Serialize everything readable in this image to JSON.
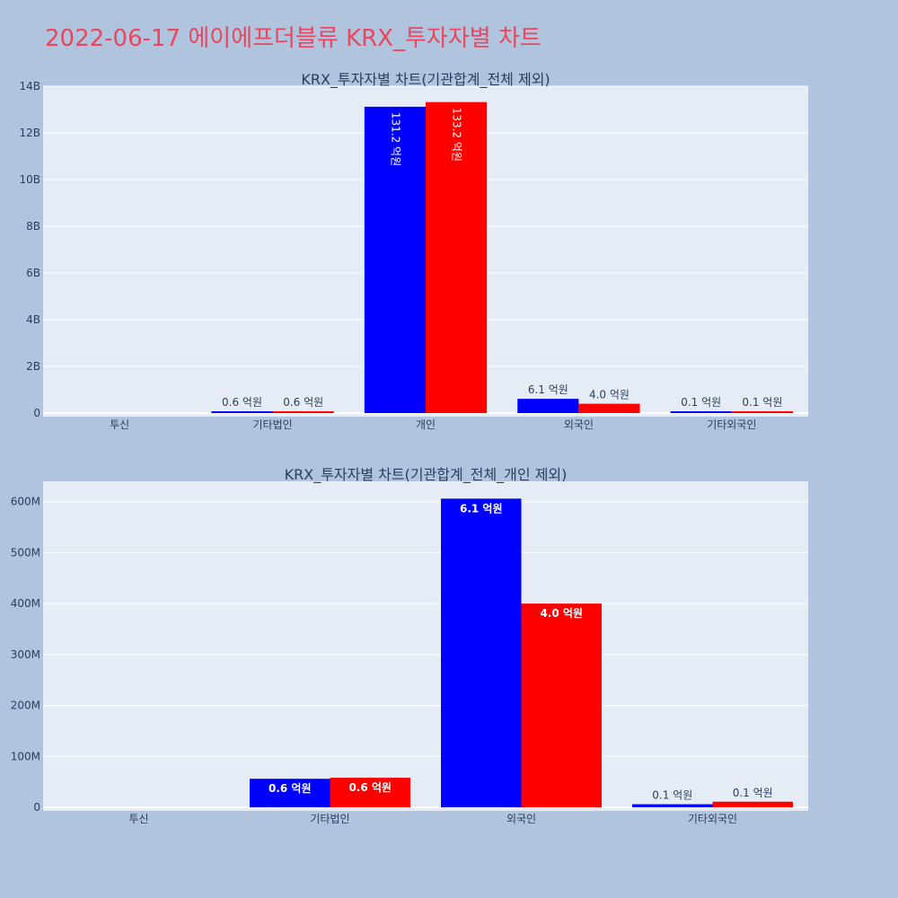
{
  "page": {
    "title": "2022-06-17 에이에프더블류 KRX_투자자별 차트"
  },
  "colors": {
    "background": "#b0c4de",
    "plot_bg": "#e5ecf6",
    "series_a": "#0000ff",
    "series_b": "#ff0000",
    "title": "#e8475f",
    "text": "#2a3f5f"
  },
  "chart_data": [
    {
      "type": "bar",
      "title": "KRX_투자자별 차트(기관합계_전체 제외)",
      "categories": [
        "투신",
        "기타법인",
        "개인",
        "외국인",
        "기타외국인"
      ],
      "series": [
        {
          "color": "#0000ff",
          "values": [
            0,
            56000000,
            13120000000,
            610000000,
            10000000
          ],
          "labels": [
            "",
            "0.6 억원",
            "131.2 억원",
            "6.1 억원",
            "0.1 억원"
          ]
        },
        {
          "color": "#ff0000",
          "values": [
            0,
            58000000,
            13320000000,
            400000000,
            10000000
          ],
          "labels": [
            "",
            "0.6 억원",
            "133.2 억원",
            "4.0 억원",
            "0.1 억원"
          ]
        }
      ],
      "ylim": [
        0,
        14000000000
      ],
      "yticks": [
        0,
        2000000000,
        4000000000,
        6000000000,
        8000000000,
        10000000000,
        12000000000,
        14000000000
      ],
      "ytick_labels": [
        "0",
        "2B",
        "4B",
        "6B",
        "8B",
        "10B",
        "12B",
        "14B"
      ],
      "grid": true
    },
    {
      "type": "bar",
      "title": "KRX_투자자별 차트(기관합계_전체_개인 제외)",
      "categories": [
        "투신",
        "기타법인",
        "외국인",
        "기타외국인"
      ],
      "series": [
        {
          "color": "#0000ff",
          "values": [
            0,
            56000000,
            606000000,
            6000000
          ],
          "labels": [
            "",
            "0.6 억원",
            "6.1 억원",
            "0.1 억원"
          ]
        },
        {
          "color": "#ff0000",
          "values": [
            0,
            58000000,
            400000000,
            11000000
          ],
          "labels": [
            "",
            "0.6 억원",
            "4.0 억원",
            "0.1 억원"
          ]
        }
      ],
      "ylim": [
        0,
        640000000
      ],
      "yticks": [
        0,
        100000000,
        200000000,
        300000000,
        400000000,
        500000000,
        600000000
      ],
      "ytick_labels": [
        "0",
        "100M",
        "200M",
        "300M",
        "400M",
        "500M",
        "600M"
      ],
      "grid": true
    }
  ]
}
